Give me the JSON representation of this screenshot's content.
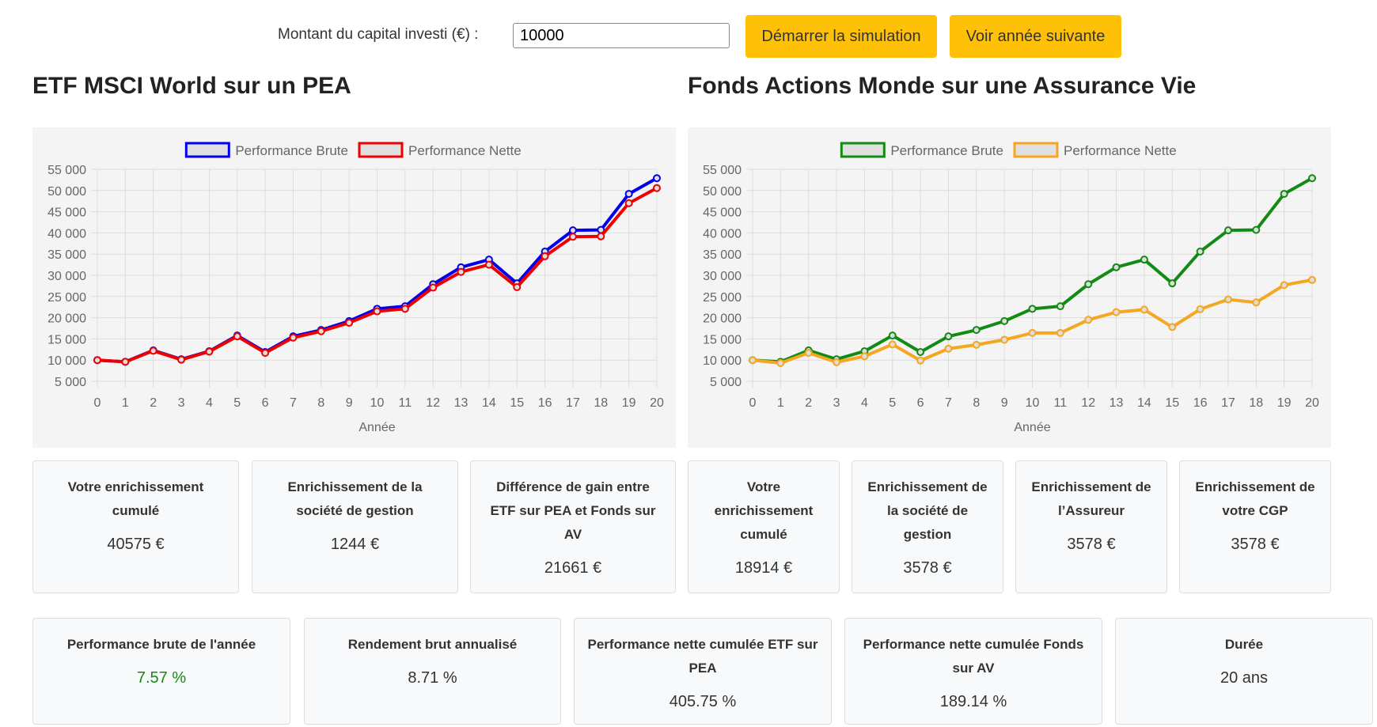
{
  "header": {
    "label": "Montant du capital investi (€) :",
    "input_value": "10000",
    "buttons": [
      "Démarrer la simulation",
      "Voir année suivante"
    ]
  },
  "chart_data": [
    {
      "type": "line",
      "title": "ETF MSCI World sur un PEA",
      "x_label": "Année",
      "x": [
        0,
        1,
        2,
        3,
        4,
        5,
        6,
        7,
        8,
        9,
        10,
        11,
        12,
        13,
        14,
        15,
        16,
        17,
        18,
        19,
        20
      ],
      "xlim": [
        0,
        20
      ],
      "xticks": [
        0,
        1,
        2,
        3,
        4,
        5,
        6,
        7,
        8,
        9,
        10,
        11,
        12,
        13,
        14,
        15,
        16,
        17,
        18,
        19,
        20
      ],
      "ylim": [
        5000,
        55000
      ],
      "yticks": [
        {
          "value": 5000,
          "label": "5 000"
        },
        {
          "value": 10000,
          "label": "10 000"
        },
        {
          "value": 15000,
          "label": "15 000"
        },
        {
          "value": 20000,
          "label": "20 000"
        },
        {
          "value": 25000,
          "label": "25 000"
        },
        {
          "value": 30000,
          "label": "30 000"
        },
        {
          "value": 35000,
          "label": "35 000"
        },
        {
          "value": 40000,
          "label": "40 000"
        },
        {
          "value": 45000,
          "label": "45 000"
        },
        {
          "value": 50000,
          "label": "50 000"
        },
        {
          "value": 55000,
          "label": "55 000"
        }
      ],
      "grid": true,
      "series": [
        {
          "name": "Performance Brute",
          "color": "#0000ee",
          "values": [
            10000,
            9600,
            12300,
            10200,
            12100,
            15800,
            11900,
            15600,
            17100,
            19200,
            22100,
            22700,
            27900,
            31900,
            33700,
            28100,
            35600,
            40600,
            40700,
            49200,
            52900
          ]
        },
        {
          "name": "Performance Nette",
          "color": "#ee0000",
          "values": [
            10000,
            9600,
            12200,
            10100,
            12000,
            15600,
            11700,
            15300,
            16800,
            18800,
            21500,
            22100,
            27100,
            30800,
            32500,
            27200,
            34500,
            39100,
            39200,
            47000,
            50575
          ]
        }
      ]
    },
    {
      "type": "line",
      "title": "Fonds Actions Monde sur une Assurance Vie",
      "x_label": "Année",
      "x": [
        0,
        1,
        2,
        3,
        4,
        5,
        6,
        7,
        8,
        9,
        10,
        11,
        12,
        13,
        14,
        15,
        16,
        17,
        18,
        19,
        20
      ],
      "xlim": [
        0,
        20
      ],
      "xticks": [
        0,
        1,
        2,
        3,
        4,
        5,
        6,
        7,
        8,
        9,
        10,
        11,
        12,
        13,
        14,
        15,
        16,
        17,
        18,
        19,
        20
      ],
      "ylim": [
        5000,
        55000
      ],
      "yticks": [
        {
          "value": 5000,
          "label": "5 000"
        },
        {
          "value": 10000,
          "label": "10 000"
        },
        {
          "value": 15000,
          "label": "15 000"
        },
        {
          "value": 20000,
          "label": "20 000"
        },
        {
          "value": 25000,
          "label": "25 000"
        },
        {
          "value": 30000,
          "label": "30 000"
        },
        {
          "value": 35000,
          "label": "35 000"
        },
        {
          "value": 40000,
          "label": "40 000"
        },
        {
          "value": 45000,
          "label": "45 000"
        },
        {
          "value": 50000,
          "label": "50 000"
        },
        {
          "value": 55000,
          "label": "55 000"
        }
      ],
      "grid": true,
      "series": [
        {
          "name": "Performance Brute",
          "color": "#138a13",
          "values": [
            10000,
            9600,
            12300,
            10200,
            12100,
            15800,
            11900,
            15600,
            17100,
            19200,
            22100,
            22700,
            27900,
            31900,
            33700,
            28100,
            35600,
            40600,
            40700,
            49200,
            52900
          ]
        },
        {
          "name": "Performance Nette",
          "color": "#f5a623",
          "values": [
            10000,
            9300,
            11700,
            9500,
            10900,
            13700,
            9900,
            12700,
            13600,
            14800,
            16400,
            16400,
            19500,
            21300,
            21900,
            17800,
            22000,
            24300,
            23600,
            27700,
            28914
          ]
        }
      ]
    }
  ],
  "cards_pea": [
    {
      "label": "Votre enrichissement cumulé",
      "value": "40575 €"
    },
    {
      "label": "Enrichissement de la société de gestion",
      "value": "1244 €"
    },
    {
      "label": "Différence de gain entre ETF sur PEA et Fonds sur AV",
      "value": "21661 €"
    }
  ],
  "cards_av": [
    {
      "label": "Votre enrichissement cumulé",
      "value": "18914 €"
    },
    {
      "label": "Enrichissement de la société de gestion",
      "value": "3578 €"
    },
    {
      "label": "Enrichissement de l’Assureur",
      "value": "3578 €"
    },
    {
      "label": "Enrichissement de votre CGP",
      "value": "3578 €"
    }
  ],
  "cards_summary": [
    {
      "label": "Performance brute de l'année",
      "value": "7.57 %"
    },
    {
      "label": "Rendement brut annualisé",
      "value": "8.71 %"
    },
    {
      "label": "Performance nette cumulée ETF sur PEA",
      "value": "405.75 %"
    },
    {
      "label": "Performance nette cumulée Fonds sur AV",
      "value": "189.14 %"
    },
    {
      "label": "Durée",
      "value": "20 ans"
    }
  ]
}
